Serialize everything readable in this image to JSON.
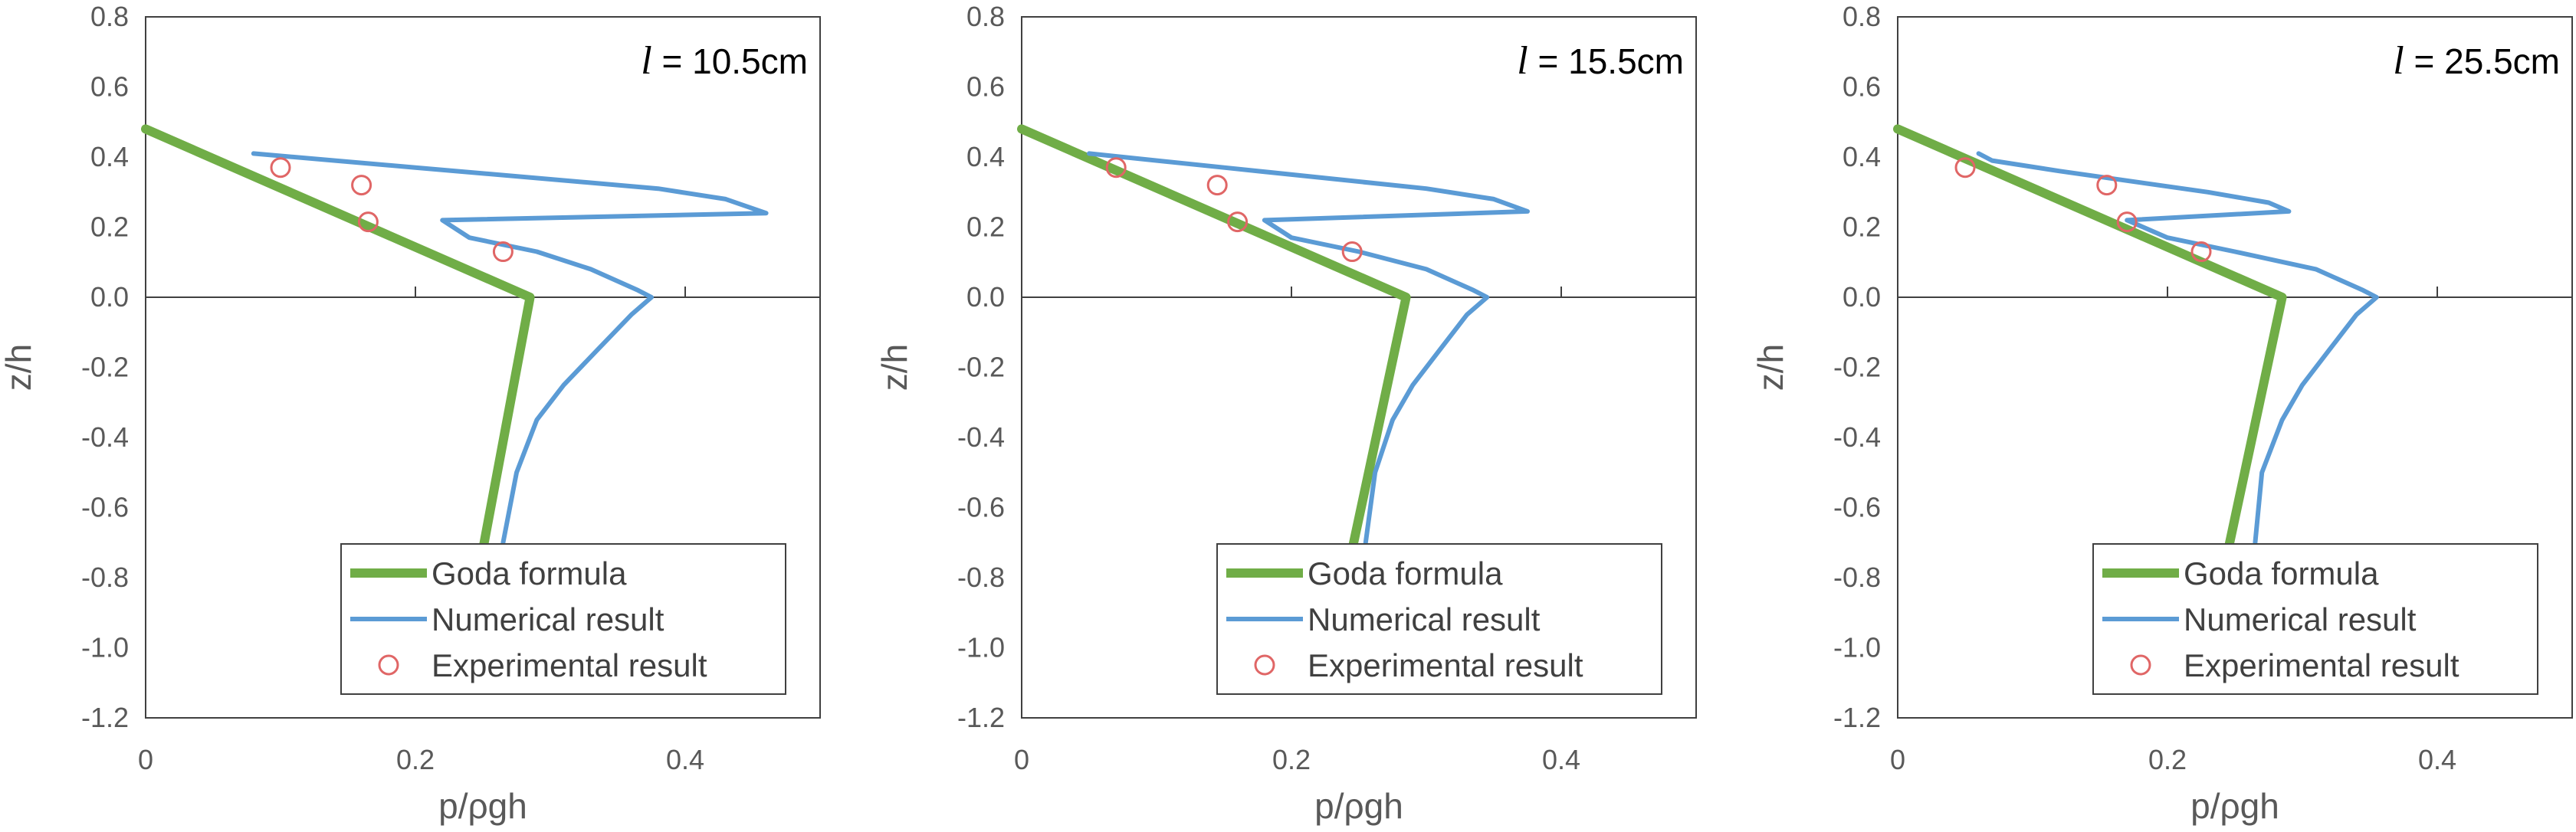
{
  "chart_data": [
    {
      "type": "line",
      "title": "l = 10.5cm",
      "title_var": "l",
      "title_rest": " = 10.5cm",
      "xlabel": "p/ρgh",
      "ylabel": "z/h",
      "xlim": [
        0,
        0.5
      ],
      "ylim": [
        -1.2,
        0.8
      ],
      "xticks": [
        "0",
        "0.2",
        "0.4"
      ],
      "yticks": [
        "0.8",
        "0.6",
        "0.4",
        "0.2",
        "0.0",
        "-0.2",
        "-0.4",
        "-0.6",
        "-0.8",
        "-1.0",
        "-1.2"
      ],
      "grid": false,
      "legend_position": "bottom-right",
      "series": [
        {
          "name": "Goda formula",
          "style": "line",
          "color": "#70AD47",
          "x": [
            0.0,
            0.285,
            0.25
          ],
          "y": [
            0.48,
            0.0,
            -0.72
          ]
        },
        {
          "name": "Numerical result",
          "style": "line",
          "color": "#5B9BD5",
          "x": [
            0.08,
            0.2,
            0.38,
            0.43,
            0.46,
            0.22,
            0.24,
            0.29,
            0.33,
            0.365,
            0.375,
            0.36,
            0.335,
            0.31,
            0.29,
            0.275,
            0.265
          ],
          "y": [
            0.41,
            0.37,
            0.31,
            0.28,
            0.24,
            0.22,
            0.17,
            0.13,
            0.08,
            0.02,
            0.0,
            -0.05,
            -0.15,
            -0.25,
            -0.35,
            -0.5,
            -0.7
          ]
        },
        {
          "name": "Experimental result",
          "style": "marker",
          "color": "#E06666",
          "x": [
            0.1,
            0.16,
            0.165,
            0.265
          ],
          "y": [
            0.37,
            0.32,
            0.215,
            0.13
          ]
        }
      ]
    },
    {
      "type": "line",
      "title": "l = 15.5cm",
      "title_var": "l",
      "title_rest": " = 15.5cm",
      "xlabel": "p/ρgh",
      "ylabel": "z/h",
      "xlim": [
        0,
        0.5
      ],
      "ylim": [
        -1.2,
        0.8
      ],
      "xticks": [
        "0",
        "0.2",
        "0.4"
      ],
      "yticks": [
        "0.8",
        "0.6",
        "0.4",
        "0.2",
        "0.0",
        "-0.2",
        "-0.4",
        "-0.6",
        "-0.8",
        "-1.0",
        "-1.2"
      ],
      "grid": false,
      "legend_position": "bottom-right",
      "series": [
        {
          "name": "Goda formula",
          "style": "line",
          "color": "#70AD47",
          "x": [
            0.0,
            0.285,
            0.245
          ],
          "y": [
            0.48,
            0.0,
            -0.72
          ]
        },
        {
          "name": "Numerical result",
          "style": "line",
          "color": "#5B9BD5",
          "x": [
            0.05,
            0.15,
            0.3,
            0.35,
            0.375,
            0.18,
            0.2,
            0.25,
            0.3,
            0.335,
            0.345,
            0.33,
            0.31,
            0.29,
            0.275,
            0.262,
            0.255
          ],
          "y": [
            0.41,
            0.37,
            0.31,
            0.28,
            0.245,
            0.22,
            0.17,
            0.13,
            0.08,
            0.02,
            0.0,
            -0.05,
            -0.15,
            -0.25,
            -0.35,
            -0.5,
            -0.7
          ]
        },
        {
          "name": "Experimental result",
          "style": "marker",
          "color": "#E06666",
          "x": [
            0.07,
            0.145,
            0.16,
            0.245
          ],
          "y": [
            0.37,
            0.32,
            0.215,
            0.13
          ]
        }
      ]
    },
    {
      "type": "line",
      "title": "l = 25.5cm",
      "title_var": "l",
      "title_rest": " = 25.5cm",
      "xlabel": "p/ρgh",
      "ylabel": "z/h",
      "xlim": [
        0,
        0.5
      ],
      "ylim": [
        -1.2,
        0.8
      ],
      "xticks": [
        "0",
        "0.2",
        "0.4"
      ],
      "yticks": [
        "0.8",
        "0.6",
        "0.4",
        "0.2",
        "0.0",
        "-0.2",
        "-0.4",
        "-0.6",
        "-0.8",
        "-1.0",
        "-1.2"
      ],
      "grid": false,
      "legend_position": "bottom-right",
      "series": [
        {
          "name": "Goda formula",
          "style": "line",
          "color": "#70AD47",
          "x": [
            0.0,
            0.285,
            0.245
          ],
          "y": [
            0.48,
            0.0,
            -0.72
          ]
        },
        {
          "name": "Numerical result",
          "style": "line",
          "color": "#5B9BD5",
          "x": [
            0.06,
            0.07,
            0.12,
            0.23,
            0.275,
            0.29,
            0.17,
            0.2,
            0.25,
            0.31,
            0.345,
            0.355,
            0.34,
            0.32,
            0.3,
            0.285,
            0.27,
            0.265
          ],
          "y": [
            0.41,
            0.39,
            0.36,
            0.3,
            0.27,
            0.245,
            0.22,
            0.17,
            0.13,
            0.08,
            0.02,
            0.0,
            -0.05,
            -0.15,
            -0.25,
            -0.35,
            -0.5,
            -0.7
          ]
        },
        {
          "name": "Experimental result",
          "style": "marker",
          "color": "#E06666",
          "x": [
            0.05,
            0.155,
            0.17,
            0.225
          ],
          "y": [
            0.37,
            0.32,
            0.215,
            0.13
          ]
        }
      ]
    }
  ]
}
